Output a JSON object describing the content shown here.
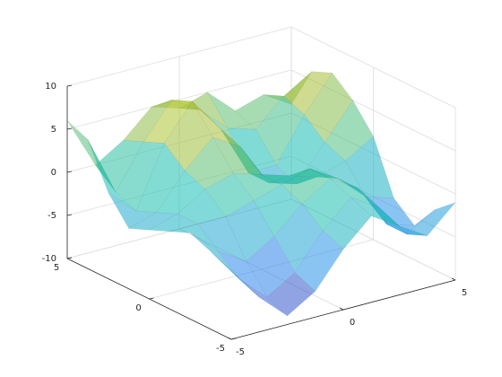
{
  "chart_data": {
    "type": "surface",
    "x": [
      -5,
      -3.75,
      -2.5,
      -1.25,
      0,
      1.25,
      2.5,
      3.75,
      5
    ],
    "y": [
      -5,
      -3.75,
      -2.5,
      -1.25,
      0,
      1.25,
      2.5,
      3.75,
      5
    ],
    "z": [
      [
        -2,
        -6,
        -9,
        -7,
        -3,
        0,
        -2,
        -4,
        -1
      ],
      [
        -1,
        -5,
        -8,
        -6,
        -2,
        1,
        -1,
        -5,
        -3
      ],
      [
        0,
        -3,
        -5,
        -3,
        0,
        2,
        0,
        -5,
        -6
      ],
      [
        -1,
        -1,
        -1,
        0,
        1,
        2,
        0,
        -3,
        -4
      ],
      [
        -2,
        -1,
        1,
        2,
        1,
        0,
        -1,
        0,
        2
      ],
      [
        -3,
        -2,
        2,
        5,
        3,
        -2,
        -3,
        1,
        5
      ],
      [
        0,
        -3,
        4,
        8,
        4,
        -2,
        -2,
        3,
        7
      ],
      [
        5,
        -2,
        3,
        7,
        5,
        2,
        1,
        4,
        6
      ],
      [
        6,
        0,
        2,
        5,
        4,
        5,
        2,
        3,
        1
      ]
    ],
    "xlim": [
      -5,
      5
    ],
    "ylim": [
      -5,
      5
    ],
    "zlim": [
      -10,
      10
    ],
    "xticks": [
      -5,
      0,
      5
    ],
    "yticks": [
      -5,
      0,
      5
    ],
    "zticks": [
      -10,
      -5,
      0,
      5,
      10
    ],
    "grid": true,
    "colormap": [
      "#3e26a8",
      "#2c8ef0",
      "#17bfb4",
      "#a5be35",
      "#f9fb0e"
    ]
  }
}
